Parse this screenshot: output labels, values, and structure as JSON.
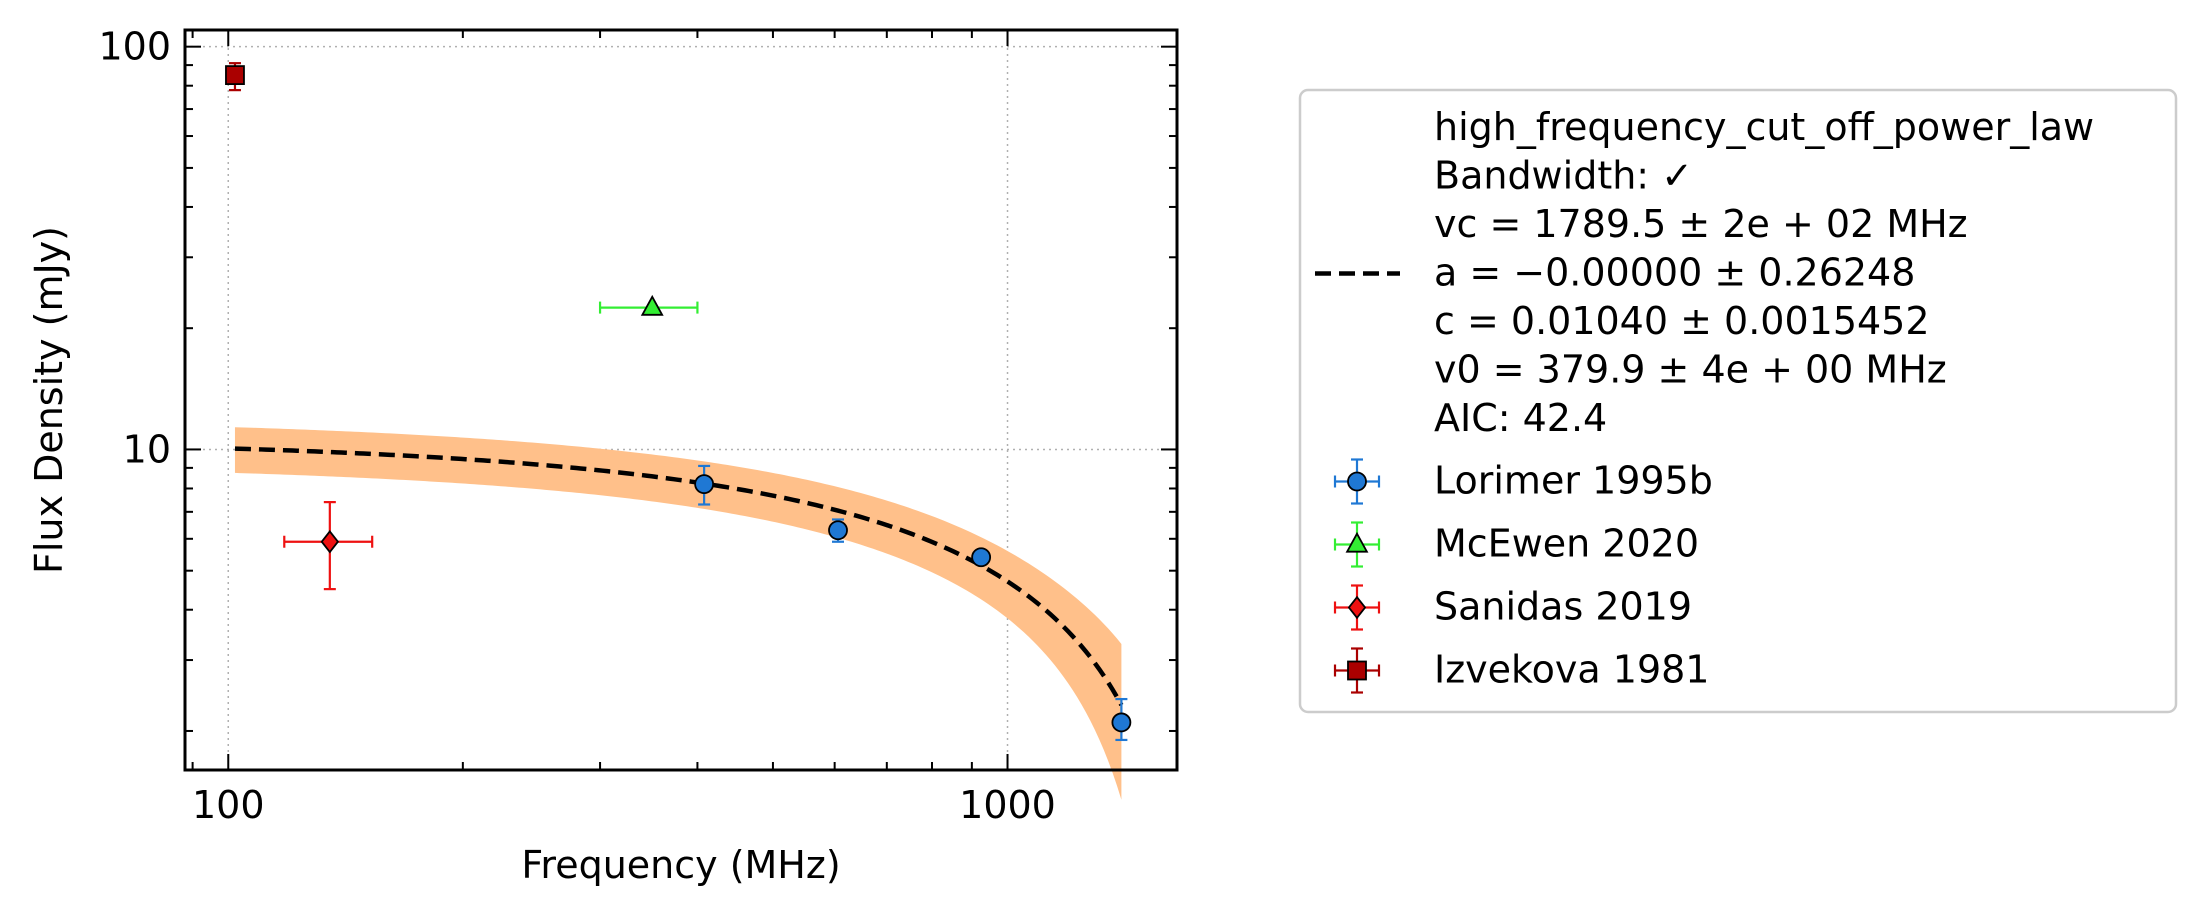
{
  "chart_data": {
    "type": "scatter",
    "xlabel": "Frequency (MHz)",
    "ylabel": "Flux Density (mJy)",
    "x_scale": "log",
    "y_scale": "log",
    "xlim": [
      88,
      1650
    ],
    "ylim": [
      1.6,
      110
    ],
    "x_ticks": [
      100,
      1000
    ],
    "x_tick_labels": [
      "100",
      "1000"
    ],
    "y_ticks": [
      10,
      100
    ],
    "y_tick_labels": [
      "10",
      "100"
    ],
    "grid": true,
    "legend_position": "outside-right",
    "fit": {
      "model": "high_frequency_cut_off_power_law",
      "vc": 1789.5,
      "vc_err": 200,
      "a": 0.0,
      "a_err": 0.26248,
      "c": 0.0104,
      "c_err": 0.0015452,
      "v0": 379.9,
      "v0_err": 4,
      "aic": 42.4,
      "x_range": [
        102,
        1400
      ],
      "band_rel_err_low": 0.13,
      "band_rel_err_high": 0.22,
      "band_color": "#ffc08a",
      "line_color": "#000000",
      "legend_lines": [
        "high_frequency_cut_off_power_law",
        "Bandwidth: ✓",
        "vc = 1789.5 ± 2e + 02 MHz",
        "a = −0.00000 ± 0.26248",
        "c = 0.01040 ± 0.0015452",
        "v0 = 379.9 ± 4e + 00 MHz",
        "AIC: 42.4"
      ]
    },
    "series": [
      {
        "name": "Lorimer 1995b",
        "marker": "circle",
        "color": "#1f78d4",
        "points": [
          {
            "x": 408,
            "y": 8.2,
            "yerr": [
              7.3,
              9.1
            ]
          },
          {
            "x": 606,
            "y": 6.3,
            "yerr": [
              5.9,
              6.7
            ]
          },
          {
            "x": 925,
            "y": 5.4,
            "yerr": [
              5.2,
              5.6
            ]
          },
          {
            "x": 1400,
            "y": 2.1,
            "yerr": [
              1.9,
              2.4
            ]
          }
        ]
      },
      {
        "name": "McEwen 2020",
        "marker": "triangle",
        "color": "#33ee33",
        "points": [
          {
            "x": 350,
            "y": 22.5,
            "xerr": [
              300,
              400
            ]
          }
        ]
      },
      {
        "name": "Sanidas 2019",
        "marker": "diamond",
        "color": "#ee1111",
        "points": [
          {
            "x": 135,
            "y": 5.9,
            "xerr": [
              118,
              153
            ],
            "yerr": [
              4.5,
              7.4
            ]
          }
        ]
      },
      {
        "name": "Izvekova 1981",
        "marker": "square",
        "color": "#aa0000",
        "points": [
          {
            "x": 102,
            "y": 85,
            "yerr": [
              78,
              91
            ]
          }
        ]
      }
    ]
  }
}
